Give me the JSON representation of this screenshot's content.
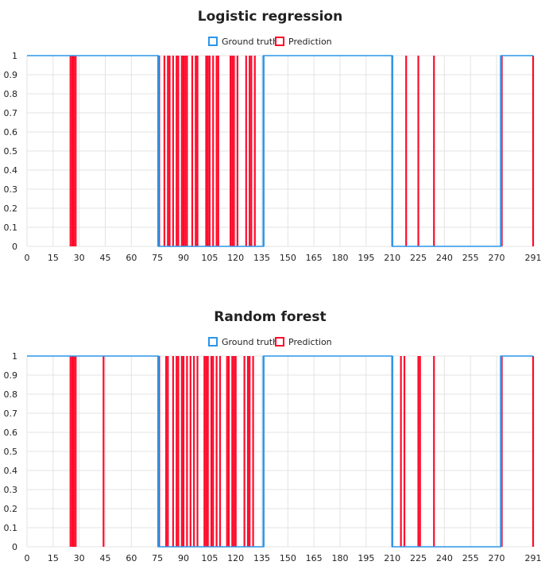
{
  "legend": [
    {
      "label": "Ground truth",
      "color": "#2d95e8"
    },
    {
      "label": "Prediction",
      "color": "#ff0a2a"
    }
  ],
  "chart_data": [
    {
      "type": "bar",
      "title": "Logistic regression",
      "xlabel": "",
      "ylabel": "",
      "xlim": [
        0,
        291
      ],
      "ylim": [
        0,
        1
      ],
      "x_ticks": [
        0,
        15,
        30,
        45,
        60,
        75,
        90,
        105,
        120,
        135,
        150,
        165,
        180,
        195,
        210,
        225,
        240,
        255,
        270,
        291
      ],
      "y_ticks": [
        0,
        0.1,
        0.2,
        0.3,
        0.4,
        0.5,
        0.6,
        0.7,
        0.8,
        0.9,
        1
      ],
      "grid": true,
      "legend_position": "top",
      "series": [
        {
          "name": "Ground truth",
          "color": "#2d95e8",
          "style": "step",
          "segments": [
            {
              "x": [
                0,
                75.5
              ],
              "value": 1
            },
            {
              "x": [
                75.5,
                136
              ],
              "value": 0
            },
            {
              "x": [
                136,
                210
              ],
              "value": 1
            },
            {
              "x": [
                210,
                272.5
              ],
              "value": 0
            },
            {
              "x": [
                272.5,
                291
              ],
              "value": 1
            }
          ]
        },
        {
          "name": "Prediction",
          "color": "#ff0a2a",
          "values_equal_1_at_x": [
            25,
            26,
            27,
            28,
            76,
            79,
            81,
            82,
            84,
            86,
            87,
            89,
            90,
            91,
            92,
            95,
            97,
            98,
            103,
            104,
            105,
            107,
            109,
            110,
            117,
            118,
            119,
            121,
            126,
            128,
            129,
            131,
            210,
            218,
            225,
            234,
            273,
            291
          ]
        }
      ]
    },
    {
      "type": "bar",
      "title": "Random forest",
      "xlabel": "",
      "ylabel": "",
      "xlim": [
        0,
        291
      ],
      "ylim": [
        0,
        1
      ],
      "x_ticks": [
        0,
        15,
        30,
        45,
        60,
        75,
        90,
        105,
        120,
        135,
        150,
        165,
        180,
        195,
        210,
        225,
        240,
        255,
        270,
        291
      ],
      "y_ticks": [
        0,
        0.1,
        0.2,
        0.3,
        0.4,
        0.5,
        0.6,
        0.7,
        0.8,
        0.9,
        1
      ],
      "grid": true,
      "legend_position": "top",
      "series": [
        {
          "name": "Ground truth",
          "color": "#2d95e8",
          "style": "step",
          "segments": [
            {
              "x": [
                0,
                75.5
              ],
              "value": 1
            },
            {
              "x": [
                75.5,
                136
              ],
              "value": 0
            },
            {
              "x": [
                136,
                210
              ],
              "value": 1
            },
            {
              "x": [
                210,
                272.5
              ],
              "value": 0
            },
            {
              "x": [
                272.5,
                291
              ],
              "value": 1
            }
          ]
        },
        {
          "name": "Prediction",
          "color": "#ff0a2a",
          "values_equal_1_at_x": [
            25,
            26,
            27,
            28,
            44,
            76,
            80,
            81,
            84,
            86,
            87,
            89,
            90,
            92,
            94,
            96,
            98,
            102,
            103,
            104,
            106,
            107,
            109,
            111,
            115,
            116,
            118,
            119,
            120,
            125,
            127,
            128,
            130,
            210,
            215,
            217,
            225,
            226,
            234,
            273,
            291
          ]
        }
      ]
    }
  ]
}
